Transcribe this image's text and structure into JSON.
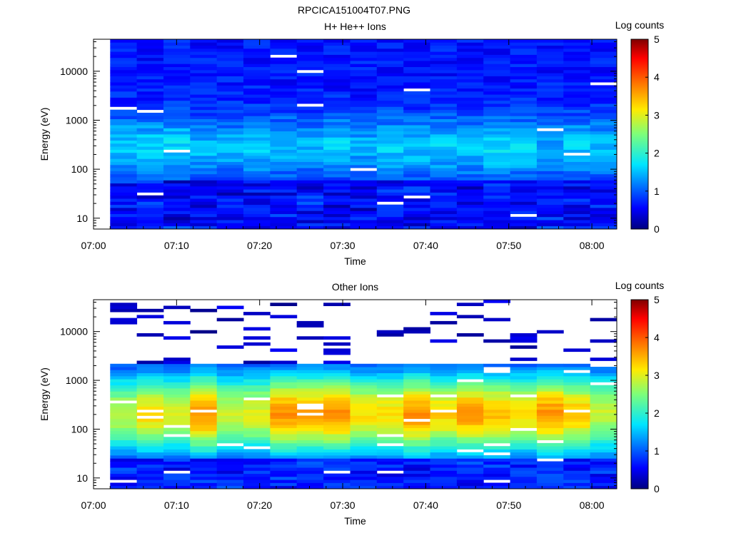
{
  "page": {
    "filename": "RPCICA151004T07.PNG"
  },
  "chart_data": [
    {
      "type": "heatmap",
      "title": "H+ He++ Ions",
      "xlabel": "Time",
      "ylabel": "Energy (eV)",
      "x_ticks": [
        "07:00",
        "07:10",
        "07:20",
        "07:30",
        "07:40",
        "07:50",
        "08:00"
      ],
      "x_range": [
        "07:00",
        "08:03"
      ],
      "y_scale": "log",
      "y_ticks": [
        10,
        100,
        1000,
        10000
      ],
      "y_tick_labels": [
        "10",
        "100",
        "1000",
        "10000"
      ],
      "y_range": [
        6,
        45000
      ],
      "time_steps": 19,
      "first_step": "07:02",
      "energy_bins": 62,
      "colorbar": {
        "label": "Log counts",
        "range": [
          0,
          5
        ],
        "ticks": [
          "0",
          "1",
          "2",
          "3",
          "4",
          "5"
        ]
      },
      "spectrum": {
        "background": 0.65,
        "peak_log_counts": 1.55,
        "peak_energy": 280,
        "width_decades": 0.45,
        "low_energy_level": 0.35,
        "low_energy_below": 60,
        "high_energy_cutoff": null,
        "noise": 0.45,
        "gap_prob": 0.018
      }
    },
    {
      "type": "heatmap",
      "title": "Other Ions",
      "xlabel": "Time",
      "ylabel": "Energy (eV)",
      "x_ticks": [
        "07:00",
        "07:10",
        "07:20",
        "07:30",
        "07:40",
        "07:50",
        "08:00"
      ],
      "x_range": [
        "07:00",
        "08:03"
      ],
      "y_scale": "log",
      "y_ticks": [
        10,
        100,
        1000,
        10000
      ],
      "y_tick_labels": [
        "10",
        "100",
        "1000",
        "10000"
      ],
      "y_range": [
        6,
        45000
      ],
      "time_steps": 19,
      "first_step": "07:02",
      "energy_bins": 62,
      "colorbar": {
        "label": "Log counts",
        "range": [
          0,
          5
        ],
        "ticks": [
          "0",
          "1",
          "2",
          "3",
          "4",
          "5"
        ]
      },
      "spectrum": {
        "background": 0.25,
        "peak_log_counts": 3.25,
        "peak_energy": 210,
        "width_decades": 0.62,
        "low_energy_level": 0.45,
        "low_energy_below": 25,
        "high_energy_cutoff": 2200,
        "noise": 0.3,
        "gap_prob": 0.04
      }
    }
  ]
}
